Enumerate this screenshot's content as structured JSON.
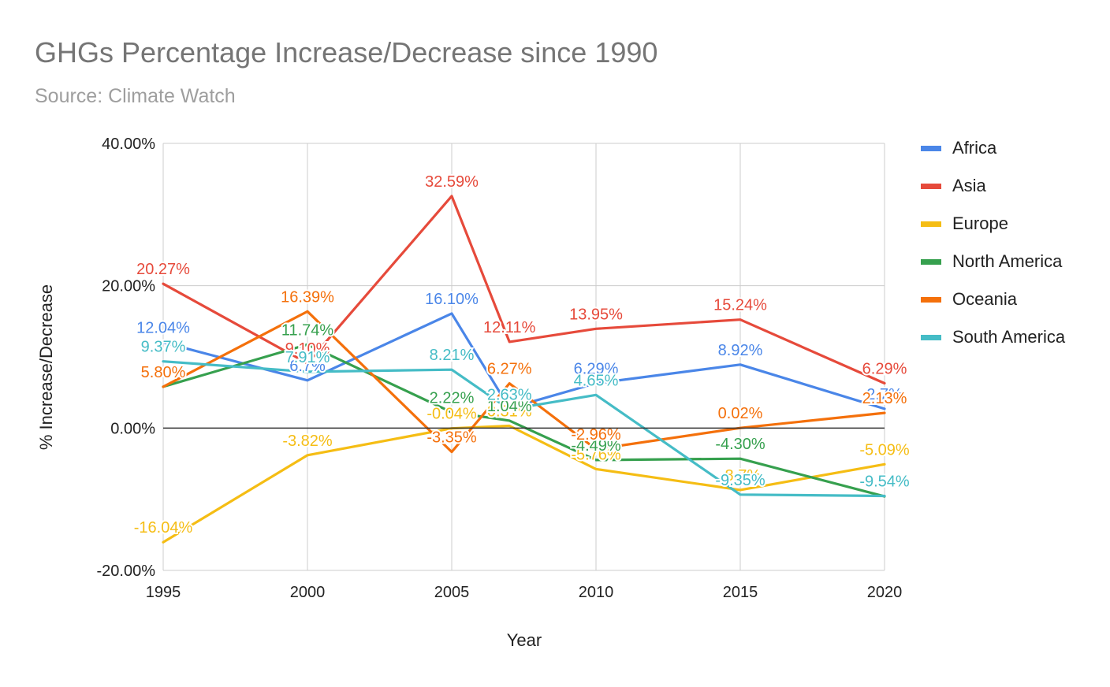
{
  "chart_data": {
    "type": "line",
    "title": "GHGs Percentage Increase/Decrease since 1990",
    "subtitle": "Source: Climate Watch",
    "xlabel": "Year",
    "ylabel": "% Increase/Decrease",
    "x": [
      1995,
      2000,
      2005,
      2007,
      2010,
      2015,
      2020
    ],
    "x_ticks": [
      "1995",
      "2000",
      "2005",
      "2010",
      "2015",
      "2020"
    ],
    "y_ticks": [
      "-20.00%",
      "0.00%",
      "20.00%",
      "40.00%"
    ],
    "ylim": [
      -20,
      40
    ],
    "xlim": [
      1995,
      2020
    ],
    "grid": true,
    "legend_position": "right",
    "series": [
      {
        "name": "Africa",
        "color": "#4a86e8",
        "values": [
          12.04,
          6.7,
          16.1,
          2.8,
          6.29,
          8.92,
          2.7
        ],
        "labels": [
          "12.04%",
          "6.7%",
          "16.10%",
          "",
          "6.29%",
          "8.92%",
          "2.7%"
        ]
      },
      {
        "name": "Asia",
        "color": "#e64a3b",
        "values": [
          20.27,
          9.1,
          32.59,
          12.11,
          13.95,
          15.24,
          6.29
        ],
        "labels": [
          "20.27%",
          "9.10%",
          "32.59%",
          "12.11%",
          "13.95%",
          "15.24%",
          "6.29%"
        ]
      },
      {
        "name": "Europe",
        "color": "#f5bd14",
        "values": [
          -16.04,
          -3.82,
          -0.04,
          0.31,
          -5.76,
          -8.7,
          -5.09
        ],
        "labels": [
          "-16.04%",
          "-3.82%",
          "-0.04%",
          "0.31%",
          "-5.76%",
          "-8.7%",
          "-5.09%"
        ]
      },
      {
        "name": "North America",
        "color": "#36a04e",
        "values": [
          5.8,
          11.74,
          2.22,
          1.04,
          -4.49,
          -4.3,
          -9.6
        ],
        "labels": [
          "",
          "11.74%",
          "2.22%",
          "1.04%",
          "-4.49%",
          "-4.30%",
          ""
        ]
      },
      {
        "name": "Oceania",
        "color": "#f4700b",
        "values": [
          5.8,
          16.39,
          -3.35,
          6.27,
          -2.96,
          0.02,
          2.13
        ],
        "labels": [
          "5.80%",
          "16.39%",
          "-3.35%",
          "6.27%",
          "-2.96%",
          "0.02%",
          "2.13%"
        ]
      },
      {
        "name": "South America",
        "color": "#45bcc6",
        "values": [
          9.37,
          7.91,
          8.21,
          2.63,
          4.65,
          -9.35,
          -9.54
        ],
        "labels": [
          "9.37%",
          "7.91%",
          "8.21%",
          "2.63%",
          "4.65%",
          "-9.35%",
          "-9.54%"
        ]
      }
    ]
  }
}
